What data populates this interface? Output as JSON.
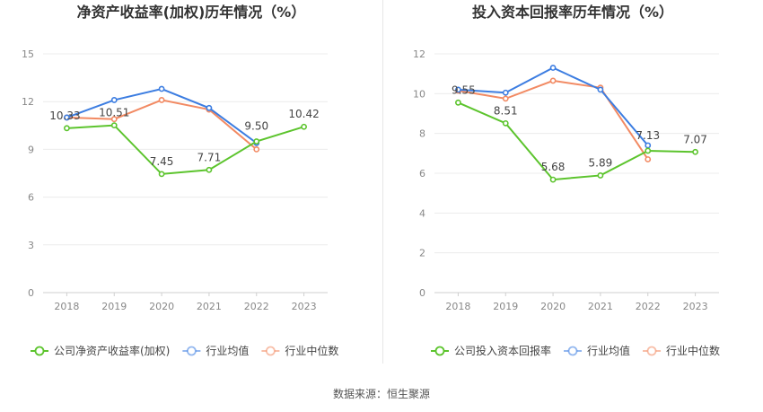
{
  "source_text": "数据来源：恒生聚源",
  "colors": {
    "company": "#5cc42d",
    "avg": "#3c7de1",
    "median": "#f28a63"
  },
  "chart_data": [
    {
      "type": "line",
      "title": "净资产收益率(加权)历年情况（%）",
      "xlabel": "",
      "ylabel": "",
      "categories": [
        "2018",
        "2019",
        "2020",
        "2021",
        "2022",
        "2023"
      ],
      "y_ticks": [
        "0",
        "3",
        "6",
        "9",
        "12",
        "15"
      ],
      "ylim": [
        0,
        15
      ],
      "grid": true,
      "legend_position": "bottom",
      "series": [
        {
          "name": "公司净资产收益率(加权)",
          "color": "#5cc42d",
          "values": [
            10.33,
            10.51,
            7.45,
            7.71,
            9.5,
            10.42
          ],
          "labels": [
            "10.33",
            "10.51",
            "7.45",
            "7.71",
            "9.50",
            "10.42"
          ]
        },
        {
          "name": "行业均值",
          "color": "#3c7de1",
          "values": [
            11.0,
            12.1,
            12.8,
            11.6,
            9.4,
            null
          ]
        },
        {
          "name": "行业中位数",
          "color": "#f28a63",
          "values": [
            11.0,
            10.9,
            12.1,
            11.5,
            9.0,
            null
          ]
        }
      ]
    },
    {
      "type": "line",
      "title": "投入资本回报率历年情况（%）",
      "xlabel": "",
      "ylabel": "",
      "categories": [
        "2018",
        "2019",
        "2020",
        "2021",
        "2022",
        "2023"
      ],
      "y_ticks": [
        "0",
        "2",
        "4",
        "6",
        "8",
        "10",
        "12"
      ],
      "ylim": [
        0,
        12
      ],
      "grid": true,
      "legend_position": "bottom",
      "series": [
        {
          "name": "公司投入资本回报率",
          "color": "#5cc42d",
          "values": [
            9.55,
            8.51,
            5.68,
            5.89,
            7.13,
            7.07
          ],
          "labels": [
            "9.55",
            "8.51",
            "5.68",
            "5.89",
            "7.13",
            "7.07"
          ]
        },
        {
          "name": "行业均值",
          "color": "#3c7de1",
          "values": [
            10.2,
            10.05,
            11.3,
            10.2,
            7.4,
            null
          ]
        },
        {
          "name": "行业中位数",
          "color": "#f28a63",
          "values": [
            10.15,
            9.75,
            10.65,
            10.3,
            6.7,
            null
          ]
        }
      ]
    }
  ]
}
